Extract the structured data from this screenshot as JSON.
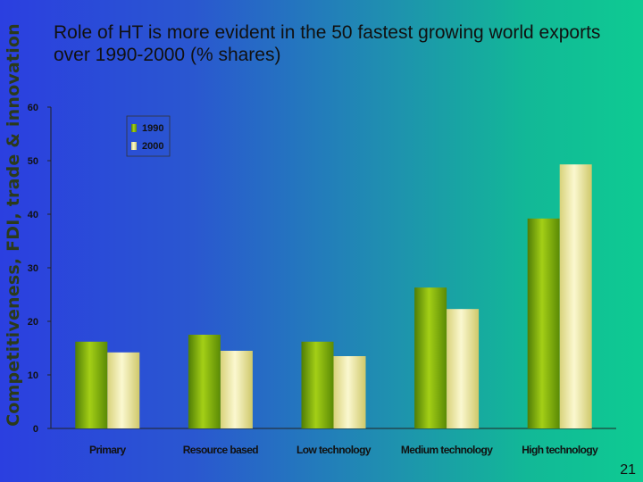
{
  "side_label": "Competitiveness, FDI, trade & innovation",
  "slide_title": "Role of HT is more evident in the 50 fastest growing world exports over 1990-2000 (% shares)",
  "page_number": "21",
  "colors": {
    "series_1990": "#8fbf0a",
    "series_2000": "#efe9a4",
    "background_left": "#2b3fe0",
    "background_right": "#0ecb92"
  },
  "chart_data": {
    "type": "bar",
    "title": "",
    "xlabel": "",
    "ylabel": "",
    "categories": [
      "Primary",
      "Resource based",
      "Low technology",
      "Medium technology",
      "High technology"
    ],
    "series": [
      {
        "name": "1990",
        "values": [
          16.2,
          17.5,
          16.2,
          26.3,
          39.2
        ]
      },
      {
        "name": "2000",
        "values": [
          14.2,
          14.5,
          13.5,
          22.3,
          49.3
        ]
      }
    ],
    "ylim": [
      0,
      60
    ],
    "yticks": [
      0,
      10,
      20,
      30,
      40,
      50,
      60
    ],
    "grid": false,
    "legend_position": "top-left"
  }
}
